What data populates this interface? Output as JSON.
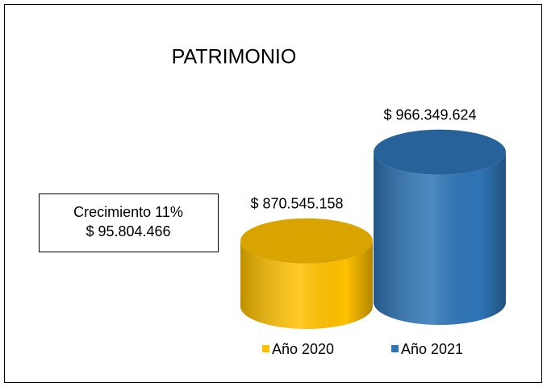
{
  "chart_data": {
    "type": "bar",
    "title": "PATRIMONIO",
    "series": [
      {
        "name": "Año 2020",
        "color": "#FFC000",
        "values": [
          870545158
        ],
        "value_labels": [
          "$ 870.545.158"
        ]
      },
      {
        "name": "Año 2021",
        "color": "#2E75B6",
        "values": [
          966349624
        ],
        "value_labels": [
          "$ 966.349.624"
        ]
      }
    ],
    "ylim": [
      800000000,
      1000000000
    ],
    "annotation": [
      "Crecimiento 11%",
      "$ 95.804.466"
    ],
    "legend": "bottom"
  }
}
